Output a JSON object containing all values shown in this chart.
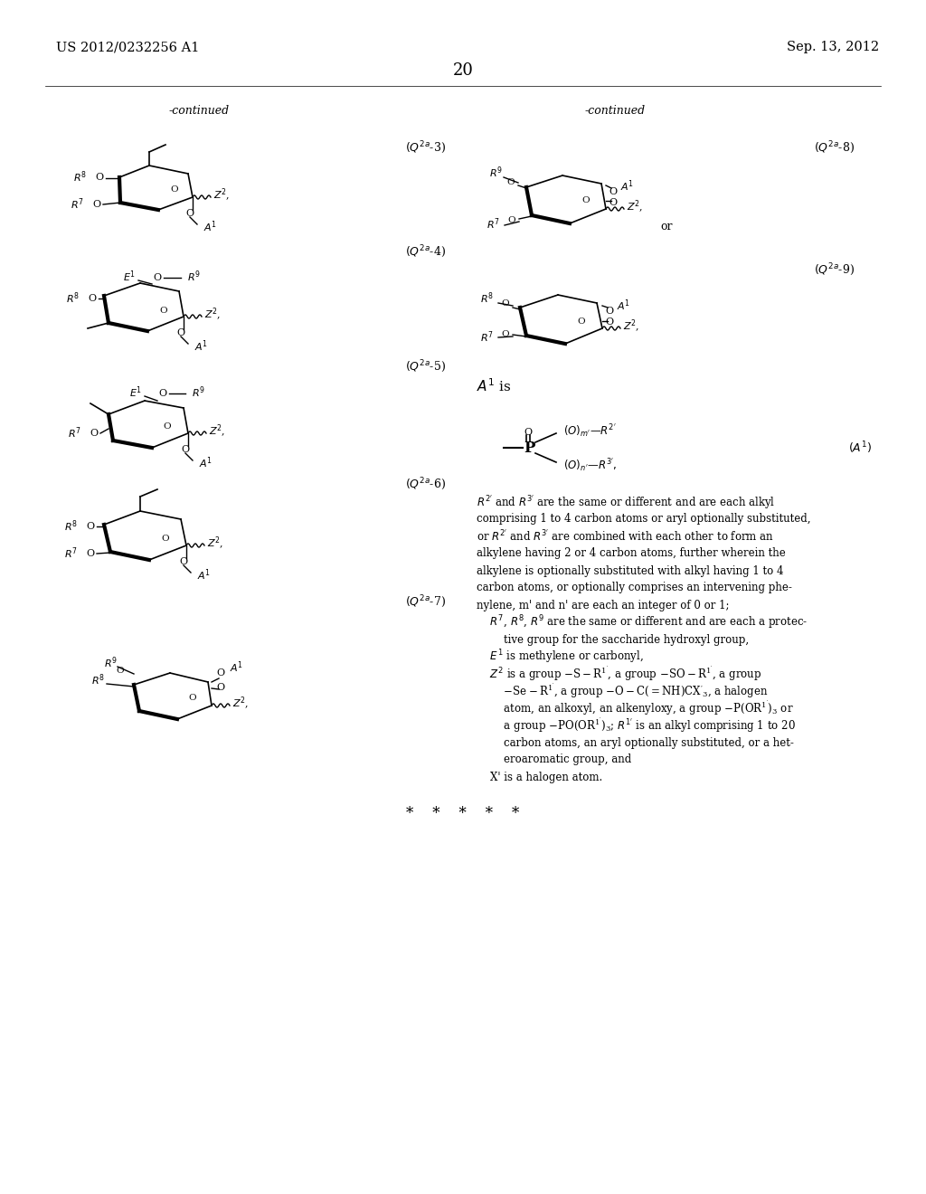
{
  "background_color": "#ffffff",
  "text_color": "#000000",
  "figsize": [
    10.24,
    13.2
  ],
  "dpi": 100,
  "patent_left": "US 2012/0232256 A1",
  "patent_right": "Sep. 13, 2012",
  "page_num": "20"
}
